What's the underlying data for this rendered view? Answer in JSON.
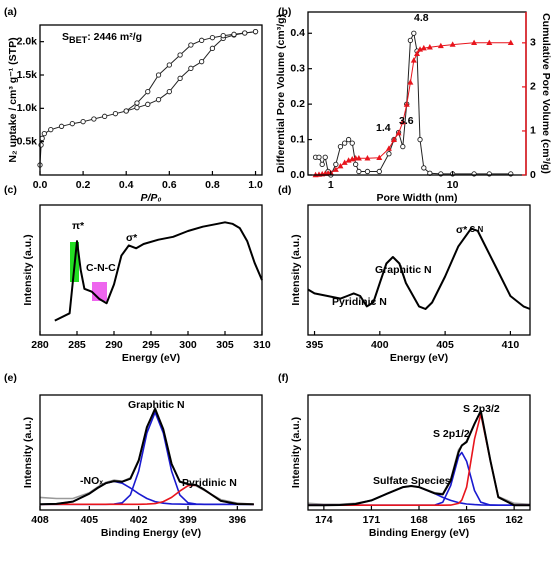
{
  "chart_data": [
    {
      "type": "line",
      "label": "(a)",
      "xlabel": "P/P₀",
      "ylabel": "N₂ uptake / cm³ g⁻¹ (STP)",
      "annotations": [
        [
          "S",
          "BET",
          ": 2446 m²/g"
        ]
      ],
      "xlim": [
        0,
        1.03
      ],
      "xticks": [
        {
          "value": 0,
          "label": "0.0"
        },
        0.2,
        0.4,
        0.6,
        0.8,
        {
          "value": 1,
          "label": "1.0"
        }
      ],
      "ylim": [
        0,
        2250
      ],
      "yticks": [
        {
          "value": 500,
          "label": "0.5k"
        },
        {
          "value": 1000,
          "label": "1.0k"
        },
        {
          "value": 1500,
          "label": "1.5k"
        },
        {
          "value": 2000,
          "label": "2.0k"
        }
      ],
      "x": [
        0,
        0.005,
        0.01,
        0.02,
        0.05,
        0.1,
        0.15,
        0.2,
        0.25,
        0.3,
        0.35,
        0.4,
        0.45,
        0.5,
        0.55,
        0.6,
        0.65,
        0.7,
        0.75,
        0.8,
        0.85,
        0.9,
        0.95,
        1.0
      ],
      "series": [
        {
          "color": "#222222",
          "marker": "circle",
          "values": [
            150,
            450,
            550,
            620,
            680,
            730,
            770,
            800,
            840,
            880,
            920,
            960,
            1010,
            1060,
            1130,
            1250,
            1450,
            1600,
            1700,
            1900,
            2050,
            2100,
            2130,
            2150
          ]
        },
        {
          "color": "#222222",
          "marker": "circle",
          "values": [
            null,
            null,
            null,
            null,
            null,
            null,
            null,
            null,
            null,
            null,
            null,
            960,
            1080,
            1250,
            1500,
            1650,
            1800,
            1950,
            2020,
            2060,
            2090,
            2110,
            2130,
            2150
          ]
        }
      ]
    },
    {
      "type": "line",
      "label": "(b)",
      "xlabel": "Pore Width (nm)",
      "ylabel": "Differential Pore Volume (cm³/g)",
      "y2label": "Cumulative Pore Volume (cm³/g)",
      "annotations": [
        "1.4",
        "3.6",
        "4.8"
      ],
      "xscale": "log",
      "xlim": [
        0.65,
        40
      ],
      "xticks": [
        1,
        10
      ],
      "ylim": [
        0,
        0.46
      ],
      "yticks": [
        {
          "value": 0,
          "label": "0.0"
        },
        0.1,
        0.2,
        0.3,
        0.4
      ],
      "y2lim": [
        0,
        3.7
      ],
      "y2ticks": [
        0,
        1,
        2,
        3
      ],
      "x": [
        0.75,
        0.8,
        0.85,
        0.9,
        0.95,
        1.0,
        1.1,
        1.2,
        1.3,
        1.4,
        1.5,
        1.6,
        1.7,
        2.0,
        2.5,
        3.0,
        3.3,
        3.6,
        3.9,
        4.2,
        4.5,
        4.8,
        5.1,
        5.4,
        5.8,
        6.5,
        8,
        10,
        15,
        20,
        30
      ],
      "series": [
        {
          "color": "#222222",
          "marker": "circle",
          "values": [
            0.05,
            0.05,
            0.03,
            0.05,
            0.01,
            0.0,
            0.03,
            0.08,
            0.09,
            0.1,
            0.09,
            0.03,
            0.01,
            0.01,
            0.01,
            0.06,
            0.1,
            0.12,
            0.08,
            0.2,
            0.38,
            0.4,
            0.35,
            0.1,
            0.02,
            0.005,
            0.003,
            0.003,
            0.003,
            0.003,
            0.003
          ]
        },
        {
          "color": "#e8141c",
          "marker": "triangle",
          "axis": "y2",
          "values": [
            0,
            0.01,
            0.02,
            0.03,
            0.04,
            0.05,
            0.12,
            0.2,
            0.28,
            0.33,
            0.36,
            0.38,
            0.38,
            0.38,
            0.39,
            0.6,
            0.8,
            0.95,
            1.2,
            1.6,
            2.1,
            2.6,
            2.75,
            2.85,
            2.88,
            2.9,
            2.93,
            2.96,
            3.0,
            3.0,
            3.0
          ]
        }
      ]
    },
    {
      "type": "line",
      "label": "(c)",
      "xlabel": "Energy (eV)",
      "ylabel": "Intensity (a.u.)",
      "annotations": [
        "π*",
        "C-N-C",
        "σ*"
      ],
      "xlim": [
        280,
        310
      ],
      "xticks": [
        280,
        285,
        290,
        295,
        300,
        305,
        310
      ],
      "ylim": [
        0,
        0.9
      ],
      "x": [
        282,
        284,
        284.5,
        285,
        285.5,
        286,
        287,
        288,
        289,
        290,
        291,
        292,
        293,
        294,
        296,
        298,
        300,
        302,
        304,
        305,
        306,
        307,
        308,
        309,
        310
      ],
      "series": [
        {
          "color": "#000000",
          "values": [
            0.1,
            0.15,
            0.4,
            0.65,
            0.45,
            0.32,
            0.3,
            0.25,
            0.22,
            0.35,
            0.55,
            0.62,
            0.6,
            0.63,
            0.66,
            0.68,
            0.72,
            0.75,
            0.77,
            0.78,
            0.77,
            0.74,
            0.65,
            0.5,
            0.38
          ]
        }
      ]
    },
    {
      "type": "line",
      "label": "(d)",
      "xlabel": "Energy (eV)",
      "ylabel": "Intensity (a.u.)",
      "annotations": [
        "Pyridinic N",
        "Graphitic N",
        [
          "σ*",
          " C-N"
        ]
      ],
      "xlim": [
        394.5,
        411.5
      ],
      "xticks": [
        395,
        400,
        405,
        410
      ],
      "ylim": [
        0,
        1
      ],
      "x": [
        394.5,
        395,
        396,
        397,
        397.5,
        398,
        398.5,
        399,
        399.5,
        400,
        400.5,
        401,
        401.5,
        402,
        403,
        403.5,
        404,
        405,
        406,
        407,
        407.5,
        408,
        409,
        410,
        411,
        411.5
      ],
      "series": [
        {
          "color": "#000000",
          "values": [
            0.35,
            0.32,
            0.3,
            0.28,
            0.3,
            0.32,
            0.3,
            0.22,
            0.25,
            0.4,
            0.55,
            0.6,
            0.55,
            0.4,
            0.22,
            0.2,
            0.25,
            0.45,
            0.68,
            0.82,
            0.8,
            0.7,
            0.5,
            0.3,
            0.22,
            0.2
          ]
        }
      ]
    },
    {
      "type": "line",
      "label": "(e)",
      "xlabel": "Binding Energy (eV)",
      "ylabel": "Intensity (a.u.)",
      "annotations": [
        "-NOₓ",
        "Graphitic N",
        "Pyridinic N"
      ],
      "xlim": [
        408,
        394.5
      ],
      "xticks": [
        408,
        405,
        402,
        399,
        396
      ],
      "ylim": [
        -0.05,
        0.95
      ],
      "x": [
        408,
        407,
        406,
        405,
        404.5,
        404,
        403.5,
        403,
        402.5,
        402,
        401.5,
        401,
        400.5,
        400,
        399.5,
        399,
        398.5,
        398,
        397,
        396,
        395
      ],
      "series": [
        {
          "color": "#9a9a9a",
          "values": [
            0.06,
            0.05,
            0.05,
            0.1,
            0.15,
            0.19,
            0.21,
            0.2,
            0.23,
            0.39,
            0.66,
            0.84,
            0.64,
            0.35,
            0.2,
            0.18,
            0.16,
            0.12,
            0.04,
            0.01,
            0.0
          ]
        },
        {
          "color": "#1a1ad0",
          "values": [
            0,
            0.003,
            0.023,
            0.092,
            0.141,
            0.183,
            0.2,
            0.183,
            0.141,
            0.092,
            0.05,
            0.023,
            0.009,
            0.003,
            0.001,
            0,
            0,
            0,
            0,
            0,
            0
          ]
        },
        {
          "color": "#1a1ad0",
          "values": [
            0,
            0,
            0,
            0,
            0,
            0,
            0.001,
            0.013,
            0.081,
            0.288,
            0.62,
            0.8,
            0.62,
            0.288,
            0.081,
            0.013,
            0.001,
            0,
            0,
            0,
            0
          ]
        },
        {
          "color": "#e8141c",
          "values": [
            0,
            0,
            0,
            0,
            0,
            0,
            0,
            0,
            0,
            0,
            0.001,
            0.006,
            0.023,
            0.06,
            0.114,
            0.161,
            0.166,
            0.126,
            0.029,
            0.002,
            0
          ]
        },
        {
          "color": "#000000",
          "values": [
            0,
            0.003,
            0.023,
            0.092,
            0.141,
            0.183,
            0.201,
            0.196,
            0.222,
            0.38,
            0.671,
            0.829,
            0.652,
            0.351,
            0.196,
            0.174,
            0.167,
            0.126,
            0.029,
            0.002,
            0
          ]
        }
      ]
    },
    {
      "type": "line",
      "label": "(f)",
      "xlabel": "Binding Energy (eV)",
      "ylabel": "Intensity (a.u.)",
      "annotations": [
        "S 2p3/2",
        "S 2p1/2",
        "Sulfate Species"
      ],
      "xlim": [
        175,
        161
      ],
      "xticks": [
        174,
        171,
        168,
        165,
        162
      ],
      "ylim": [
        -0.05,
        1.15
      ],
      "x": [
        175,
        174,
        173,
        172,
        171,
        170,
        169,
        168.5,
        168,
        167,
        166.5,
        166,
        165.5,
        165.3,
        165,
        164.5,
        164.1,
        163.5,
        163,
        162,
        161
      ],
      "series": [
        {
          "color": "#9a9a9a",
          "values": [
            0.02,
            0.01,
            0.01,
            0.02,
            0.05,
            0.12,
            0.19,
            0.2,
            0.19,
            0.13,
            0.12,
            0.27,
            0.58,
            0.62,
            0.67,
            0.85,
            0.98,
            0.47,
            0.09,
            0.02,
            0.01
          ]
        },
        {
          "color": "#1a1ad0",
          "values": [
            0,
            0,
            0.002,
            0.013,
            0.05,
            0.121,
            0.189,
            0.2,
            0.189,
            0.121,
            0.082,
            0.05,
            0.027,
            0.021,
            0.013,
            0.006,
            0.003,
            0.001,
            0,
            0,
            0
          ]
        },
        {
          "color": "#1a1ad0",
          "values": [
            0,
            0,
            0,
            0,
            0,
            0,
            0,
            0,
            0,
            0.002,
            0.031,
            0.206,
            0.508,
            0.55,
            0.459,
            0.153,
            0.031,
            0.001,
            0,
            0,
            0
          ]
        },
        {
          "color": "#e8141c",
          "values": [
            0,
            0,
            0,
            0,
            0,
            0,
            0,
            0,
            0,
            0,
            0,
            0.001,
            0.019,
            0.053,
            0.188,
            0.69,
            0.95,
            0.462,
            0.084,
            0,
            0
          ]
        },
        {
          "color": "#000000",
          "values": [
            0,
            0,
            0.002,
            0.013,
            0.05,
            0.121,
            0.189,
            0.2,
            0.189,
            0.123,
            0.113,
            0.257,
            0.554,
            0.624,
            0.66,
            0.849,
            0.984,
            0.464,
            0.084,
            0,
            0
          ]
        }
      ]
    }
  ]
}
